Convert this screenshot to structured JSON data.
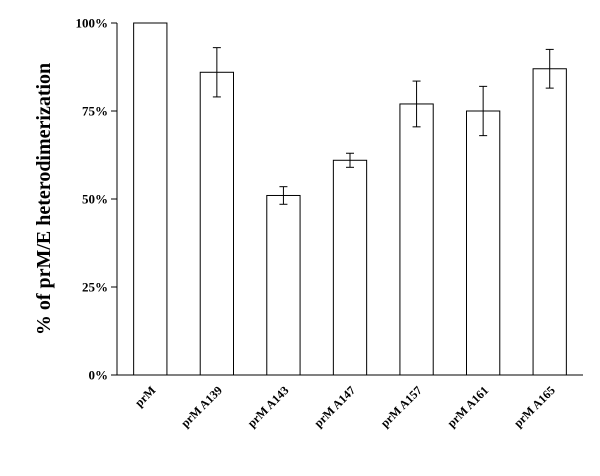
{
  "chart_data": {
    "type": "bar",
    "title": "",
    "xlabel": "",
    "ylabel": "% of prM/E heterodimerization",
    "ylim": [
      0,
      100
    ],
    "yticks": [
      0,
      25,
      50,
      75,
      100
    ],
    "ytick_labels": [
      "0%",
      "25%",
      "50%",
      "75%",
      "100%"
    ],
    "categories": [
      "prM",
      "prM A139",
      "prM A143",
      "prM A147",
      "prM A157",
      "prM A161",
      "prM A165"
    ],
    "values": [
      100,
      86,
      51,
      61,
      77,
      75,
      87
    ],
    "errors": [
      0,
      7,
      2.5,
      2,
      6.5,
      7,
      5.5
    ],
    "grid": false,
    "legend": "none",
    "bar_fill": "#ffffff",
    "bar_stroke": "#000000"
  }
}
